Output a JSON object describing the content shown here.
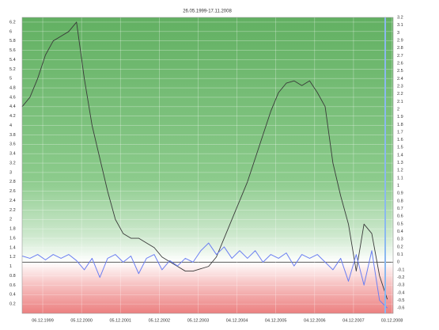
{
  "chart_data": {
    "type": "line",
    "title": "26.05.1999-17.11.2008",
    "x": [
      1999.4,
      1999.6,
      1999.8,
      2000.0,
      2000.2,
      2000.4,
      2000.6,
      2000.8,
      2001.0,
      2001.2,
      2001.4,
      2001.6,
      2001.8,
      2002.0,
      2002.2,
      2002.4,
      2002.6,
      2002.8,
      2003.0,
      2003.2,
      2003.4,
      2003.6,
      2003.8,
      2004.0,
      2004.2,
      2004.4,
      2004.6,
      2004.8,
      2005.0,
      2005.2,
      2005.4,
      2005.6,
      2005.8,
      2006.0,
      2006.2,
      2006.4,
      2006.6,
      2006.8,
      2007.0,
      2007.2,
      2007.4,
      2007.6,
      2007.8,
      2008.0,
      2008.2,
      2008.4,
      2008.6,
      2008.8
    ],
    "series": [
      {
        "color": "#3a3a3a",
        "values": [
          4.4,
          4.6,
          5.0,
          5.5,
          5.8,
          5.9,
          6.0,
          6.2,
          5.0,
          4.0,
          3.3,
          2.6,
          2.0,
          1.7,
          1.6,
          1.6,
          1.5,
          1.4,
          1.2,
          1.1,
          1.0,
          0.9,
          0.9,
          0.95,
          1.0,
          1.2,
          1.6,
          2.0,
          2.4,
          2.8,
          3.3,
          3.8,
          4.3,
          4.7,
          4.9,
          4.95,
          4.85,
          4.95,
          4.7,
          4.4,
          3.2,
          2.5,
          1.9,
          0.9,
          1.9,
          1.7,
          0.8,
          0.3
        ]
      },
      {
        "color": "#6b7ff2",
        "axis": "y2",
        "values": [
          0.08,
          0.05,
          0.1,
          0.03,
          0.1,
          0.05,
          0.1,
          0.02,
          -0.1,
          0.05,
          -0.2,
          0.05,
          0.1,
          0.0,
          0.08,
          -0.15,
          0.05,
          0.1,
          -0.1,
          0.02,
          -0.05,
          0.05,
          0.0,
          0.15,
          0.25,
          0.1,
          0.2,
          0.05,
          0.15,
          0.05,
          0.15,
          0.0,
          0.1,
          0.05,
          0.12,
          -0.05,
          0.1,
          0.05,
          0.1,
          0.0,
          -0.1,
          0.05,
          -0.25,
          0.1,
          -0.3,
          0.15,
          -0.5,
          -0.6
        ]
      }
    ],
    "xlim": [
      1999.4,
      2008.95
    ],
    "xticks": [
      {
        "value": 1999.93,
        "label": "06.12.1999"
      },
      {
        "value": 2000.93,
        "label": "05.12.2000"
      },
      {
        "value": 2001.93,
        "label": "05.12.2001"
      },
      {
        "value": 2002.93,
        "label": "05.12.2002"
      },
      {
        "value": 2003.93,
        "label": "05.12.2003"
      },
      {
        "value": 2004.93,
        "label": "04.12.2004"
      },
      {
        "value": 2005.93,
        "label": "04.12.2005"
      },
      {
        "value": 2006.93,
        "label": "04.12.2006"
      },
      {
        "value": 2007.93,
        "label": "04.12.2007"
      },
      {
        "value": 2008.92,
        "label": "03.12.2008"
      }
    ],
    "ylim": [
      0,
      6.3
    ],
    "yticks": [
      0.2,
      0.4,
      0.6,
      0.8,
      1,
      1.2,
      1.4,
      1.6,
      1.8,
      2,
      2.2,
      2.4,
      2.6,
      2.8,
      3,
      3.2,
      3.4,
      3.6,
      3.8,
      4,
      4.2,
      4.4,
      4.6,
      4.8,
      5,
      5.2,
      5.4,
      5.6,
      5.8,
      6,
      6.2
    ],
    "y2lim": [
      -0.67,
      3.2
    ],
    "y2ticks": [
      -0.6,
      -0.5,
      -0.4,
      -0.3,
      -0.2,
      -0.1,
      0,
      0.1,
      0.2,
      0.3,
      0.4,
      0.5,
      0.6,
      0.7,
      0.8,
      0.9,
      1,
      1.1,
      1.2,
      1.3,
      1.4,
      1.5,
      1.6,
      1.7,
      1.8,
      1.9,
      2,
      2.1,
      2.2,
      2.3,
      2.4,
      2.5,
      2.6,
      2.7,
      2.8,
      2.9,
      3,
      3.1,
      3.2
    ],
    "grid": true
  }
}
